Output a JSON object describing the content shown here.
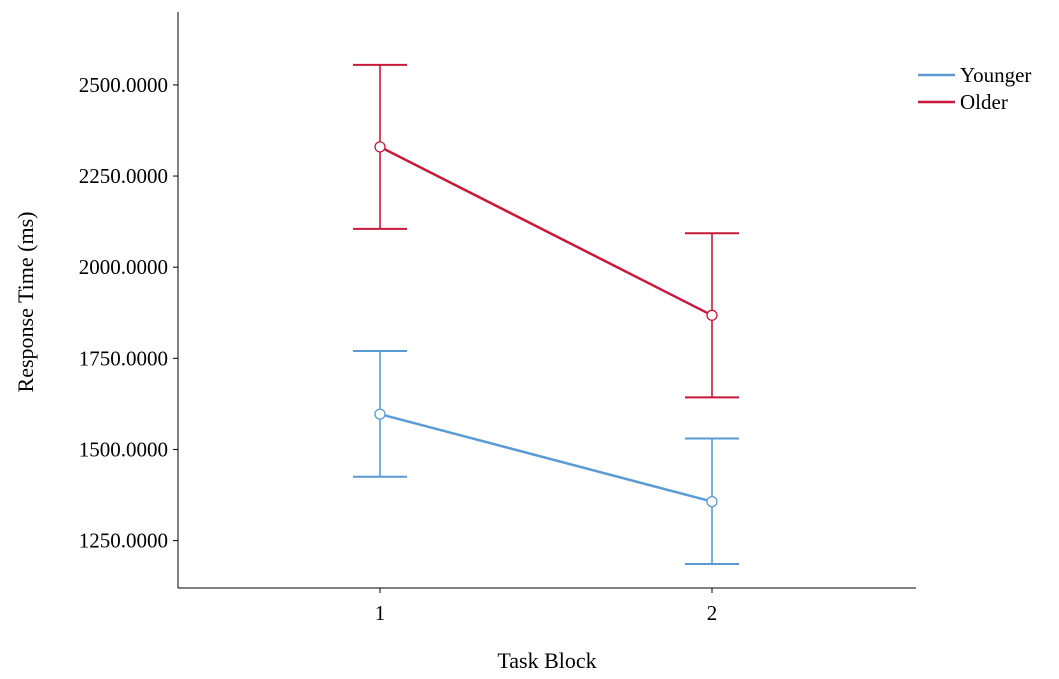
{
  "chart_data": {
    "type": "line",
    "title": "",
    "xlabel": "Task Block",
    "ylabel": "Response Time (ms)",
    "categories": [
      "1",
      "2"
    ],
    "yticks": [
      "1250.0000",
      "1500.0000",
      "1750.0000",
      "2000.0000",
      "2250.0000",
      "2500.0000"
    ],
    "ylim": [
      1120,
      2700
    ],
    "grid": false,
    "legend_position": "top-right",
    "error_bars": true,
    "series": [
      {
        "name": "Younger",
        "color": "#5b9bd5",
        "values": [
          1597,
          1357
        ],
        "error_low": [
          1425,
          1186
        ],
        "error_high": [
          1770,
          1530
        ]
      },
      {
        "name": "Older",
        "color": "#c8193c",
        "values": [
          2330,
          1868
        ],
        "error_low": [
          2105,
          1643
        ],
        "error_high": [
          2555,
          2093
        ]
      }
    ]
  }
}
